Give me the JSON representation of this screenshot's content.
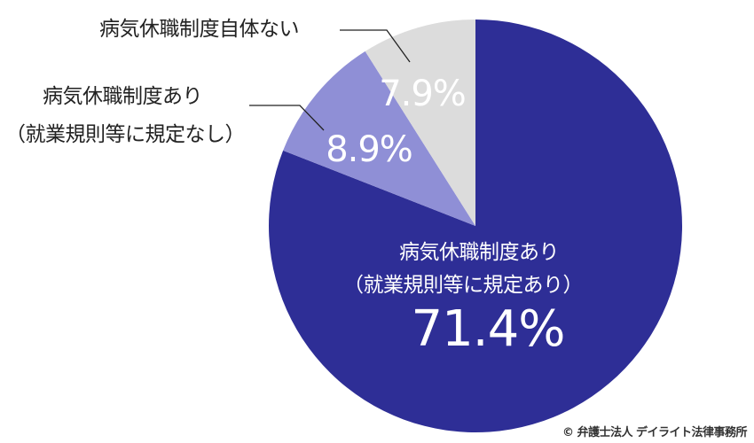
{
  "chart_data": {
    "type": "pie",
    "title": "",
    "start_angle_deg": 0,
    "direction": "clockwise",
    "slices": [
      {
        "label": "病気休職制度あり（就業規則等に規定あり）",
        "label_line1": "病気休職制度あり",
        "label_line2": "（就業規則等に規定あり）",
        "value": 71.4,
        "value_text": "71.4%",
        "color": "#2E2E96"
      },
      {
        "label": "病気休職制度あり（就業規則等に規定なし）",
        "label_line1": "病気休職制度あり",
        "label_line2": "（就業規則等に規定なし）",
        "value": 8.9,
        "value_text": "8.9%",
        "color": "#8F8FD6"
      },
      {
        "label": "病気休職制度自体ない",
        "label_line1": "病気休職制度自体ない",
        "value": 7.9,
        "value_text": "7.9%",
        "color": "#DCDCDC"
      }
    ],
    "legend": "none (leader-line labels)",
    "values_sum_note": "drawn proportional to labeled values"
  },
  "labels": {
    "outer_top": "病気休職制度自体ない",
    "outer_mid_line1": "病気休職制度あり",
    "outer_mid_line2": "（就業規則等に規定なし）",
    "inner_line1": "病気休職制度あり",
    "inner_line2": "（就業規則等に規定あり）",
    "pct_main": "71.4%",
    "pct_mid": "8.9%",
    "pct_small": "7.9%"
  },
  "footer": {
    "copyright": "© 弁護士法人 デイライト法律事務所"
  },
  "colors": {
    "slice_main": "#2E2E96",
    "slice_mid": "#8F8FD6",
    "slice_small": "#DCDCDC",
    "leader_line": "#222222",
    "text": "#222222"
  }
}
